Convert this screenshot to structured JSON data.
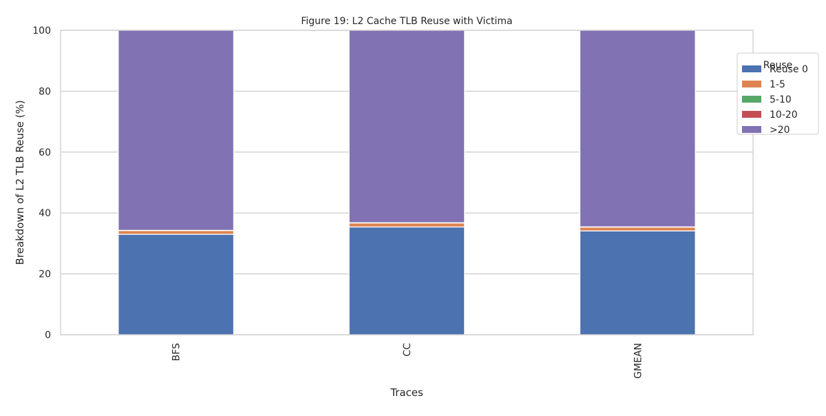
{
  "chart_data": {
    "type": "bar",
    "stacked": true,
    "title": "Figure 19: L2 Cache TLB Reuse with Victima",
    "xlabel": "Traces",
    "ylabel": "Breakdown of L2 TLB Reuse (%)",
    "categories": [
      "BFS",
      "CC",
      "GMEAN"
    ],
    "ylim": [
      0,
      100
    ],
    "yticks": [
      0,
      20,
      40,
      60,
      80,
      100
    ],
    "grid": "horizontal",
    "legend": {
      "title": "Reuse",
      "placement": "top-right"
    },
    "series": [
      {
        "name": "Reuse 0",
        "color": "#4c72b0",
        "values": [
          33.0,
          35.4,
          34.1
        ]
      },
      {
        "name": "1-5",
        "color": "#dd8452",
        "values": [
          1.2,
          1.3,
          1.25
        ]
      },
      {
        "name": "5-10",
        "color": "#55a868",
        "values": [
          0.05,
          0.05,
          0.05
        ]
      },
      {
        "name": "10-20",
        "color": "#c44e52",
        "values": [
          0.05,
          0.05,
          0.05
        ]
      },
      {
        "name": ">20",
        "color": "#8172b3",
        "values": [
          65.7,
          63.2,
          64.55
        ]
      }
    ]
  }
}
